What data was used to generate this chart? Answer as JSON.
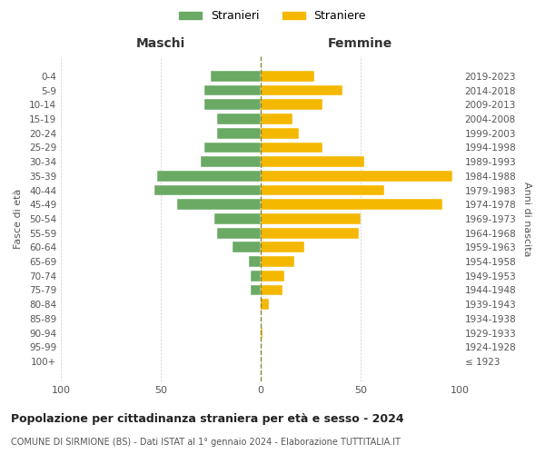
{
  "age_groups": [
    "100+",
    "95-99",
    "90-94",
    "85-89",
    "80-84",
    "75-79",
    "70-74",
    "65-69",
    "60-64",
    "55-59",
    "50-54",
    "45-49",
    "40-44",
    "35-39",
    "30-34",
    "25-29",
    "20-24",
    "15-19",
    "10-14",
    "5-9",
    "0-4"
  ],
  "birth_years": [
    "≤ 1923",
    "1924-1928",
    "1929-1933",
    "1934-1938",
    "1939-1943",
    "1944-1948",
    "1949-1953",
    "1954-1958",
    "1959-1963",
    "1964-1968",
    "1969-1973",
    "1974-1978",
    "1979-1983",
    "1984-1988",
    "1989-1993",
    "1994-1998",
    "1999-2003",
    "2004-2008",
    "2009-2013",
    "2014-2018",
    "2019-2023"
  ],
  "maschi": [
    0,
    0,
    0,
    0,
    0,
    5,
    5,
    6,
    14,
    22,
    23,
    42,
    53,
    52,
    30,
    28,
    22,
    22,
    28,
    28,
    25
  ],
  "femmine": [
    0,
    0,
    1,
    0,
    4,
    11,
    12,
    17,
    22,
    49,
    50,
    91,
    62,
    96,
    52,
    31,
    19,
    16,
    31,
    41,
    27
  ],
  "maschi_color": "#6aaa64",
  "femmine_color": "#f5b800",
  "background_color": "#ffffff",
  "grid_color": "#cccccc",
  "title": "Popolazione per cittadinanza straniera per età e sesso - 2024",
  "subtitle": "COMUNE DI SIRMIONE (BS) - Dati ISTAT al 1° gennaio 2024 - Elaborazione TUTTITALIA.IT",
  "xlabel_left": "Maschi",
  "xlabel_right": "Femmine",
  "ylabel_left": "Fasce di età",
  "ylabel_right": "Anni di nascita",
  "legend_stranieri": "Stranieri",
  "legend_straniere": "Straniere",
  "xlim": 100
}
